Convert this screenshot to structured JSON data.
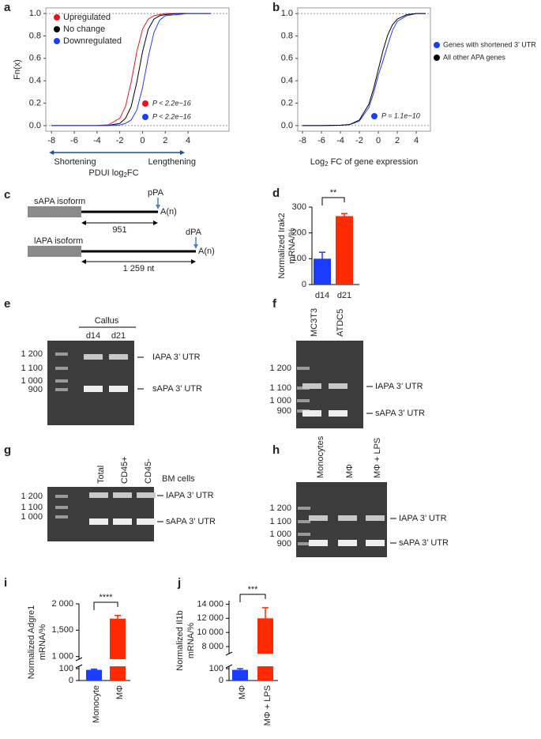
{
  "chart_data": [
    {
      "panel": "a",
      "type": "line",
      "ylabel": "Fn(x)",
      "xlabel": [
        "PDUI log",
        "2",
        "FC"
      ],
      "direction_labels": [
        "Shortening",
        "Lengthening"
      ],
      "x": [
        -8,
        -6,
        -4,
        -3,
        -2,
        -1.5,
        -1,
        -0.5,
        0,
        0.5,
        1,
        1.5,
        2,
        3,
        4,
        6
      ],
      "series": [
        {
          "name": "Upregulated",
          "color": "#e8141b",
          "values": [
            0,
            0,
            0.001,
            0.007,
            0.065,
            0.17,
            0.39,
            0.66,
            0.86,
            0.95,
            0.98,
            0.99,
            1,
            1,
            1,
            1
          ]
        },
        {
          "name": "No change",
          "color": "#000000",
          "values": [
            0,
            0,
            0,
            0.002,
            0.02,
            0.065,
            0.17,
            0.39,
            0.66,
            0.86,
            0.95,
            0.98,
            0.99,
            1,
            1,
            1
          ]
        },
        {
          "name": "Downregulated",
          "color": "#1f3bff",
          "values": [
            0,
            0,
            0,
            0,
            0.006,
            0.02,
            0.05,
            0.14,
            0.34,
            0.61,
            0.83,
            0.94,
            0.98,
            0.99,
            1,
            1
          ]
        }
      ],
      "annotations": [
        {
          "text": "P < 2.2e−16",
          "color": "#e8141b"
        },
        {
          "text": "P < 2.2e−16",
          "color": "#1f3bff"
        }
      ],
      "xlim": [
        -8.5,
        7.6
      ],
      "xticks": [
        -8,
        -6,
        -4,
        -2,
        0,
        2,
        4
      ],
      "ylim": [
        -0.05,
        1.05
      ],
      "yticks": [
        {
          "value": 0,
          "label": "0.0"
        },
        0.2,
        0.4,
        0.6,
        0.8,
        {
          "value": 1,
          "label": "1.0"
        }
      ],
      "legend": "top-left"
    },
    {
      "panel": "b",
      "type": "line",
      "xlabel": [
        "Log",
        "2",
        " FC of gene expression"
      ],
      "x": [
        -8,
        -6,
        -4,
        -3,
        -2,
        -1,
        -0.5,
        0,
        0.5,
        1,
        1.5,
        2,
        3,
        4,
        5
      ],
      "series": [
        {
          "name": "Genes with shortened 3’ UTR",
          "color": "#1f3bff",
          "values": [
            0,
            0,
            0.003,
            0.01,
            0.04,
            0.16,
            0.29,
            0.45,
            0.58,
            0.72,
            0.85,
            0.93,
            0.98,
            1,
            1
          ]
        },
        {
          "name": "All other APA genes",
          "color": "#000000",
          "values": [
            0,
            0,
            0.003,
            0.01,
            0.05,
            0.19,
            0.33,
            0.5,
            0.67,
            0.81,
            0.9,
            0.95,
            0.99,
            1,
            1
          ]
        }
      ],
      "annotations": [
        {
          "text": "P = 1.1e−10",
          "color": "#1f3bff"
        }
      ],
      "xlim": [
        -8.5,
        5.5
      ],
      "xticks": [
        -8,
        -6,
        -4,
        -2,
        0,
        2,
        4
      ],
      "ylim": [
        -0.05,
        1.05
      ],
      "yticks": [
        {
          "value": 0,
          "label": "0.0"
        },
        0.2,
        0.4,
        0.6,
        0.8,
        {
          "value": 1,
          "label": "1.0"
        }
      ],
      "legend": "right"
    },
    {
      "panel": "d",
      "type": "bar",
      "ylabel": [
        "Normalized Irak2",
        "mRNA/%"
      ],
      "categories": [
        "d14",
        "d21"
      ],
      "values": [
        100,
        265
      ],
      "errors": [
        25,
        10
      ],
      "colors": [
        "#1a3cff",
        "#ff2a00"
      ],
      "ylim": [
        0,
        300
      ],
      "yticks": [
        0,
        100,
        200,
        300
      ],
      "significance": "**"
    },
    {
      "panel": "i",
      "type": "bar",
      "ylabel": [
        "Normalized Adgre1",
        "mRNA/%"
      ],
      "categories": [
        "Monocyte",
        "MΦ"
      ],
      "values": [
        90,
        1720
      ],
      "errors": [
        6,
        60
      ],
      "colors": [
        "#1a3cff",
        "#ff2a00"
      ],
      "ylim": [
        [
          0,
          120
        ],
        [
          950,
          2000
        ]
      ],
      "yticks": [
        0,
        100,
        {
          "value": 1000,
          "label": "1 000"
        },
        {
          "value": 1500,
          "label": "1,500"
        },
        {
          "value": 2000,
          "label": "2 000"
        }
      ],
      "significance": "****"
    },
    {
      "panel": "j",
      "type": "bar",
      "ylabel": [
        "Normalized Il1b",
        "mRNA/%"
      ],
      "categories": [
        "MΦ",
        "MΦ + LPS"
      ],
      "values": [
        90,
        12000
      ],
      "errors": [
        10,
        1500
      ],
      "colors": [
        "#1a3cff",
        "#ff2a00"
      ],
      "ylim": [
        [
          0,
          120
        ],
        [
          7000,
          14500
        ]
      ],
      "yticks": [
        0,
        100,
        {
          "value": 8000,
          "label": "8 000"
        },
        {
          "value": 10000,
          "label": "10 000"
        },
        {
          "value": 12000,
          "label": "12 000"
        },
        {
          "value": 14000,
          "label": "14 000"
        }
      ],
      "significance": "***"
    }
  ],
  "diagram": {
    "panel": "c",
    "isoforms": [
      {
        "name": "sAPA isoform",
        "site": "pPA",
        "tail": "A(n)",
        "length": "951"
      },
      {
        "name": "lAPA isoform",
        "site": "dPA",
        "tail": "A(n)",
        "length": "1 259 nt"
      }
    ]
  },
  "gels": [
    {
      "panel": "e",
      "group": "Callus",
      "lanes": [
        "d14",
        "d21"
      ],
      "markers": [
        "1 200",
        "1 100",
        "1 000",
        "900"
      ],
      "bands": [
        "IAPA 3’ UTR",
        "sAPA 3’ UTR"
      ]
    },
    {
      "panel": "f",
      "lanes": [
        "MC3T3",
        "ATDC5"
      ],
      "markers": [
        "1 200",
        "1 100",
        "1 000",
        "900"
      ],
      "bands": [
        "IAPA 3’ UTR",
        "sAPA 3’ UTR"
      ]
    },
    {
      "panel": "g",
      "sample_type": "BM cells",
      "lanes": [
        "Total",
        "CD45+",
        "CD45-"
      ],
      "markers": [
        "1 200",
        "1 100",
        "1 000"
      ],
      "bands": [
        "IAPA 3’ UTR",
        "sAPA 3’ UTR"
      ]
    },
    {
      "panel": "h",
      "lanes": [
        "Monocytes",
        "MΦ",
        "MΦ + LPS"
      ],
      "markers": [
        "1 200",
        "1 100",
        "1 000",
        "900"
      ],
      "bands": [
        "IAPA 3’ UTR",
        "sAPA 3’ UTR"
      ]
    }
  ]
}
